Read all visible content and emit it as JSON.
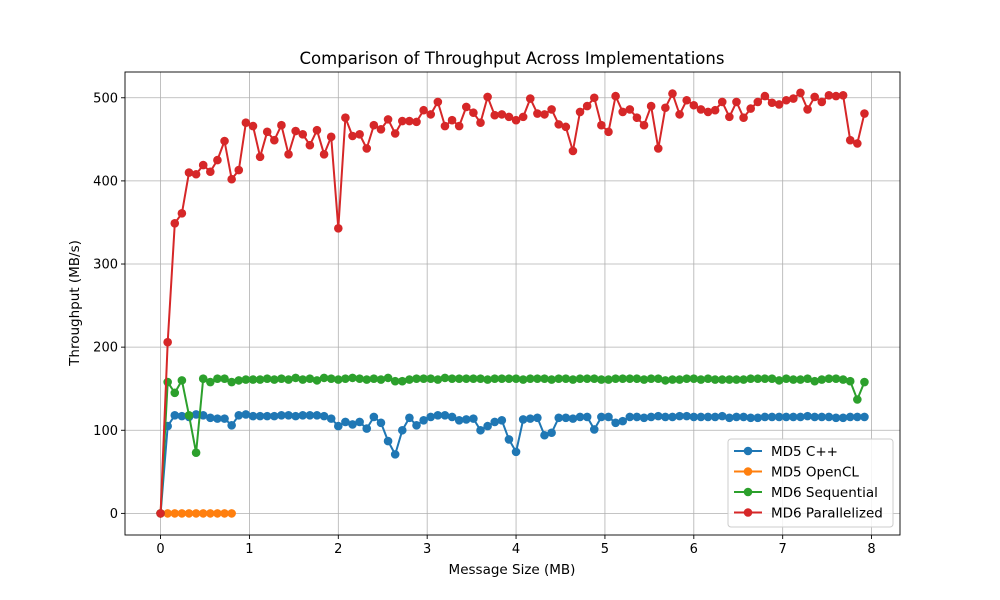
{
  "chart_data": {
    "type": "line",
    "title": "Comparison of Throughput Across Implementations",
    "xlabel": "Message Size (MB)",
    "ylabel": "Throughput (MB/s)",
    "xlim": [
      -0.4,
      8.32
    ],
    "ylim": [
      -26,
      531
    ],
    "xticks": [
      0,
      1,
      2,
      3,
      4,
      5,
      6,
      7,
      8
    ],
    "yticks": [
      0,
      100,
      200,
      300,
      400,
      500
    ],
    "grid": true,
    "legend_position": "bottom-right",
    "x": [
      0,
      0.08,
      0.16,
      0.24,
      0.32,
      0.4,
      0.48,
      0.56,
      0.64,
      0.72,
      0.8,
      0.88,
      0.96,
      1.04,
      1.12,
      1.2,
      1.28,
      1.36,
      1.44,
      1.52,
      1.6,
      1.68,
      1.76,
      1.84,
      1.92,
      2.0,
      2.08,
      2.16,
      2.24,
      2.32,
      2.4,
      2.48,
      2.56,
      2.64,
      2.72,
      2.8,
      2.88,
      2.96,
      3.04,
      3.12,
      3.2,
      3.28,
      3.36,
      3.44,
      3.52,
      3.6,
      3.68,
      3.76,
      3.84,
      3.92,
      4.0,
      4.08,
      4.16,
      4.24,
      4.32,
      4.4,
      4.48,
      4.56,
      4.64,
      4.72,
      4.8,
      4.88,
      4.96,
      5.04,
      5.12,
      5.2,
      5.28,
      5.36,
      5.44,
      5.52,
      5.6,
      5.68,
      5.76,
      5.84,
      5.92,
      6.0,
      6.08,
      6.16,
      6.24,
      6.32,
      6.4,
      6.48,
      6.56,
      6.64,
      6.72,
      6.8,
      6.88,
      6.96,
      7.04,
      7.12,
      7.2,
      7.28,
      7.36,
      7.44,
      7.52,
      7.6,
      7.68,
      7.76,
      7.84,
      7.92
    ],
    "series": [
      {
        "name": "MD5 C++",
        "color": "#1f77b4",
        "values": [
          0,
          105,
          118,
          117,
          116,
          119,
          118,
          115,
          114,
          114,
          106,
          118,
          119,
          117,
          117,
          117,
          117,
          118,
          118,
          117,
          118,
          118,
          118,
          117,
          114,
          105,
          110,
          107,
          110,
          102,
          116,
          109,
          87,
          71,
          100,
          115,
          106,
          112,
          116,
          118,
          118,
          116,
          112,
          113,
          114,
          100,
          105,
          110,
          112,
          89,
          74,
          113,
          114,
          115,
          94,
          97,
          115,
          115,
          114,
          116,
          116,
          101,
          116,
          116,
          109,
          111,
          116,
          116,
          115,
          116,
          117,
          116,
          116,
          117,
          117,
          116,
          116,
          116,
          116,
          117,
          115,
          116,
          116,
          115,
          115,
          116,
          116,
          116,
          116,
          116,
          116,
          117,
          116,
          116,
          116,
          115,
          115,
          116,
          116,
          116
        ]
      },
      {
        "name": "MD5 OpenCL",
        "color": "#ff7f0e",
        "x": [
          0,
          0.08,
          0.16,
          0.24,
          0.32,
          0.4,
          0.48,
          0.56,
          0.64,
          0.72,
          0.8
        ],
        "values": [
          0,
          0,
          0,
          0,
          0,
          0,
          0,
          0,
          0,
          0,
          0
        ]
      },
      {
        "name": "MD6 Sequential",
        "color": "#2ca02c",
        "values": [
          0,
          158,
          145,
          160,
          118,
          73,
          162,
          158,
          162,
          162,
          158,
          160,
          161,
          161,
          161,
          162,
          161,
          162,
          161,
          163,
          161,
          162,
          160,
          163,
          162,
          161,
          162,
          163,
          162,
          161,
          162,
          161,
          163,
          159,
          159,
          161,
          162,
          162,
          162,
          161,
          163,
          162,
          162,
          162,
          162,
          162,
          161,
          162,
          162,
          162,
          162,
          161,
          162,
          162,
          162,
          161,
          162,
          162,
          161,
          162,
          162,
          162,
          161,
          161,
          162,
          162,
          162,
          162,
          161,
          162,
          162,
          160,
          161,
          161,
          162,
          162,
          161,
          162,
          161,
          161,
          161,
          161,
          161,
          162,
          162,
          162,
          162,
          160,
          162,
          161,
          161,
          162,
          159,
          161,
          162,
          162,
          161,
          159,
          137,
          158
        ]
      },
      {
        "name": "MD6 Parallelized",
        "color": "#d62728",
        "values": [
          0,
          206,
          349,
          361,
          410,
          408,
          419,
          411,
          425,
          448,
          402,
          413,
          470,
          466,
          429,
          459,
          449,
          467,
          432,
          460,
          456,
          443,
          461,
          432,
          453,
          343,
          476,
          454,
          456,
          439,
          467,
          462,
          474,
          457,
          472,
          472,
          471,
          485,
          480,
          495,
          466,
          473,
          466,
          489,
          482,
          470,
          501,
          479,
          480,
          477,
          473,
          477,
          499,
          481,
          480,
          486,
          468,
          465,
          436,
          483,
          490,
          500,
          467,
          459,
          502,
          483,
          486,
          476,
          467,
          490,
          439,
          488,
          505,
          480,
          497,
          491,
          486,
          483,
          485,
          495,
          477,
          495,
          476,
          487,
          495,
          502,
          494,
          492,
          497,
          499,
          506,
          486,
          501,
          495,
          503,
          502,
          503,
          449,
          445,
          481
        ]
      }
    ]
  }
}
